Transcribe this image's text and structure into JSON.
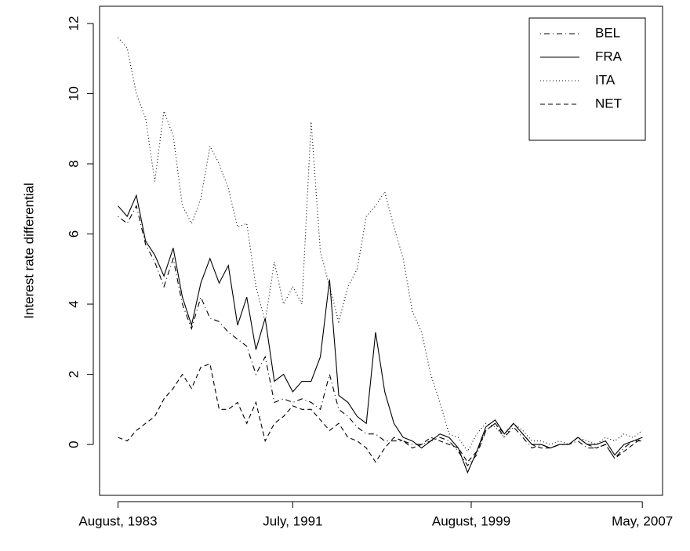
{
  "chart_data": {
    "type": "line",
    "y_label": "Interest rate differential",
    "x": [
      "1983-08",
      "1984-01",
      "1984-06",
      "1984-11",
      "1985-04",
      "1985-09",
      "1986-02",
      "1986-07",
      "1986-12",
      "1987-05",
      "1987-10",
      "1988-03",
      "1988-08",
      "1989-01",
      "1989-06",
      "1989-11",
      "1990-04",
      "1990-09",
      "1991-02",
      "1991-07",
      "1991-12",
      "1992-05",
      "1992-10",
      "1993-03",
      "1993-08",
      "1994-01",
      "1994-06",
      "1994-11",
      "1995-04",
      "1995-09",
      "1996-02",
      "1996-07",
      "1996-12",
      "1997-05",
      "1997-10",
      "1998-03",
      "1998-08",
      "1999-01",
      "1999-06",
      "1999-11",
      "2000-04",
      "2000-09",
      "2001-02",
      "2001-07",
      "2001-12",
      "2002-05",
      "2002-10",
      "2003-03",
      "2003-08",
      "2004-01",
      "2004-06",
      "2004-11",
      "2005-04",
      "2005-09",
      "2006-02",
      "2006-07",
      "2006-12",
      "2007-05"
    ],
    "series": [
      {
        "name": "BEL",
        "color": "#000000",
        "linestyle": "dotdash",
        "values": [
          6.5,
          6.3,
          6.8,
          5.7,
          5.2,
          4.5,
          5.3,
          4,
          3.3,
          4.2,
          3.6,
          3.5,
          3.2,
          3,
          2.8,
          2,
          2.5,
          1.2,
          1.3,
          1.2,
          1.3,
          1.2,
          1.0,
          2,
          1,
          0.8,
          0.5,
          0.3,
          0.3,
          0.1,
          0.1,
          0.1,
          0,
          0,
          0.1,
          0.2,
          0.1,
          -0.2,
          -0.6,
          -0.3,
          0.4,
          0.6,
          0.2,
          0.5,
          0.2,
          -0.1,
          0,
          -0.1,
          0,
          0,
          0.1,
          -0.1,
          -0.1,
          0,
          -0.4,
          -0.1,
          0.1,
          0.1
        ]
      },
      {
        "name": "FRA",
        "color": "#000000",
        "linestyle": "solid",
        "values": [
          6.8,
          6.5,
          7.1,
          5.8,
          5.4,
          4.8,
          5.6,
          4.2,
          3.4,
          4.6,
          5.3,
          4.6,
          5.1,
          3.4,
          4.2,
          2.7,
          3.6,
          1.8,
          2,
          1.5,
          1.8,
          1.8,
          2.5,
          4.7,
          1.4,
          1.2,
          0.8,
          0.6,
          3.2,
          1.5,
          0.6,
          0.2,
          0.1,
          -0.1,
          0.1,
          0.3,
          0.2,
          -0.1,
          -0.8,
          -0.2,
          0.5,
          0.7,
          0.3,
          0.6,
          0.3,
          0,
          0,
          -0.1,
          0,
          0,
          0.2,
          0,
          0,
          0.1,
          -0.3,
          0,
          0.1,
          0.2
        ]
      },
      {
        "name": "ITA",
        "color": "#000000",
        "linestyle": "dotted",
        "values": [
          11.6,
          11.3,
          10,
          9.3,
          7.5,
          9.5,
          8.8,
          6.8,
          6.3,
          7,
          8.5,
          8,
          7.3,
          6.2,
          6.3,
          4.5,
          3.5,
          5.2,
          4,
          4.5,
          4,
          9.2,
          5.5,
          4.5,
          3.5,
          4.5,
          5,
          6.5,
          6.8,
          7.2,
          6.2,
          5.3,
          3.8,
          3.2,
          2,
          1.2,
          0.3,
          0.2,
          -0.2,
          0.3,
          0.6,
          0.5,
          0.2,
          0.6,
          0.4,
          0.1,
          0.1,
          0,
          0.1,
          0,
          0.2,
          0.1,
          0,
          0.2,
          0.1,
          0.3,
          0.2,
          0.4
        ]
      },
      {
        "name": "NET",
        "color": "#000000",
        "linestyle": "dashed",
        "values": [
          0.2,
          0.1,
          0.4,
          0.6,
          0.8,
          1.3,
          1.6,
          2.0,
          1.6,
          2.2,
          2.3,
          1.0,
          1.0,
          1.2,
          0.6,
          1.2,
          0.1,
          0.6,
          0.8,
          1.1,
          1.0,
          1.0,
          0.7,
          0.4,
          0.6,
          0.2,
          0.1,
          -0.1,
          -0.5,
          -0.1,
          0.2,
          0.1,
          -0.1,
          0,
          0.2,
          0.1,
          0,
          -0.1,
          -0.5,
          -0.2,
          0.4,
          0.6,
          0.3,
          0.6,
          0.3,
          0,
          -0.1,
          -0.1,
          0,
          0,
          0.2,
          0,
          -0.1,
          0,
          -0.4,
          -0.2,
          0,
          0.2
        ]
      }
    ],
    "xlim": [
      "1982-10",
      "2008-04"
    ],
    "xticks": [
      {
        "value": "1983-08",
        "label": "August, 1983"
      },
      {
        "value": "1991-07",
        "label": "July, 1991"
      },
      {
        "value": "1999-08",
        "label": "August, 1999"
      },
      {
        "value": "2007-05",
        "label": "May, 2007"
      }
    ],
    "ylim": [
      -1.45,
      12.49
    ],
    "yticks": [
      0,
      2,
      4,
      6,
      8,
      10,
      12
    ],
    "legend": "topright"
  }
}
